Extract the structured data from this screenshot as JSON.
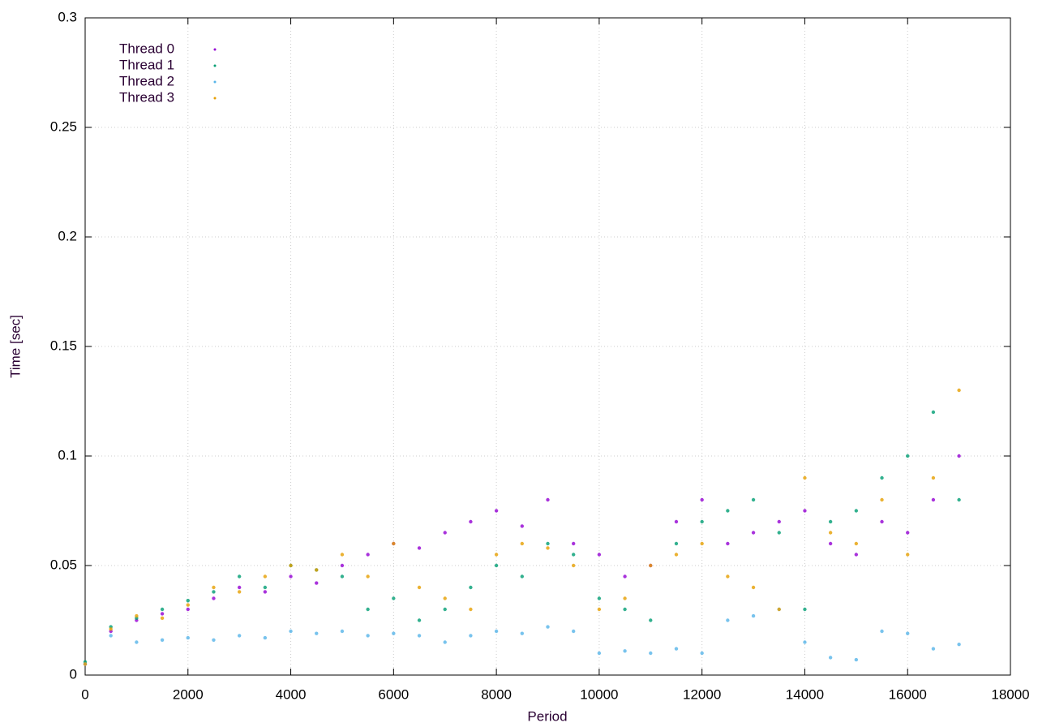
{
  "chart_data": {
    "type": "scatter",
    "x_label": "Period",
    "y_label": "Time [sec]",
    "xlim": [
      0,
      18000
    ],
    "ylim": [
      0,
      0.3
    ],
    "xticks": [
      0,
      2000,
      4000,
      6000,
      8000,
      10000,
      12000,
      14000,
      16000,
      18000
    ],
    "yticks": [
      0,
      0.05,
      0.1,
      0.15,
      0.2,
      0.25,
      0.3
    ],
    "grid": true,
    "legend_position": "top-left",
    "x": [
      0,
      500,
      1000,
      1500,
      2000,
      2500,
      3000,
      3500,
      4000,
      4500,
      5000,
      5500,
      6000,
      6500,
      7000,
      7500,
      8000,
      8500,
      9000,
      9500,
      10000,
      10500,
      11000,
      11500,
      12000,
      12500,
      13000,
      13500,
      14000,
      14500,
      15000,
      15500,
      16000,
      16500,
      17000
    ],
    "series": [
      {
        "name": "Thread 0",
        "color": "#9400d3",
        "values": [
          0.005,
          0.02,
          0.025,
          0.028,
          0.03,
          0.035,
          0.04,
          0.038,
          0.045,
          0.042,
          0.05,
          0.055,
          0.06,
          0.058,
          0.065,
          0.07,
          0.075,
          0.068,
          0.08,
          0.06,
          0.055,
          0.045,
          0.05,
          0.07,
          0.08,
          0.06,
          0.065,
          0.07,
          0.075,
          0.06,
          0.055,
          0.07,
          0.065,
          0.08,
          0.1
        ]
      },
      {
        "name": "Thread 1",
        "color": "#009e73",
        "values": [
          0.006,
          0.022,
          0.026,
          0.03,
          0.034,
          0.038,
          0.045,
          0.04,
          0.05,
          0.048,
          0.045,
          0.03,
          0.035,
          0.025,
          0.03,
          0.04,
          0.05,
          0.045,
          0.06,
          0.055,
          0.035,
          0.03,
          0.025,
          0.06,
          0.07,
          0.075,
          0.08,
          0.065,
          0.03,
          0.07,
          0.075,
          0.09,
          0.1,
          0.12,
          0.08
        ]
      },
      {
        "name": "Thread 2",
        "color": "#56b4e9",
        "values": [
          0.005,
          0.018,
          0.015,
          0.016,
          0.017,
          0.016,
          0.018,
          0.017,
          0.02,
          0.019,
          0.02,
          0.018,
          0.019,
          0.018,
          0.015,
          0.018,
          0.02,
          0.019,
          0.022,
          0.02,
          0.01,
          0.011,
          0.01,
          0.012,
          0.01,
          0.025,
          0.027,
          0.03,
          0.015,
          0.008,
          0.007,
          0.02,
          0.019,
          0.012,
          0.014
        ]
      },
      {
        "name": "Thread 3",
        "color": "#e69f00",
        "values": [
          0.005,
          0.021,
          0.027,
          0.026,
          0.032,
          0.04,
          0.038,
          0.045,
          0.05,
          0.048,
          0.055,
          0.045,
          0.06,
          0.04,
          0.035,
          0.03,
          0.055,
          0.06,
          0.058,
          0.05,
          0.03,
          0.035,
          0.05,
          0.055,
          0.06,
          0.045,
          0.04,
          0.03,
          0.09,
          0.065,
          0.06,
          0.08,
          0.055,
          0.09,
          0.13
        ]
      }
    ]
  }
}
